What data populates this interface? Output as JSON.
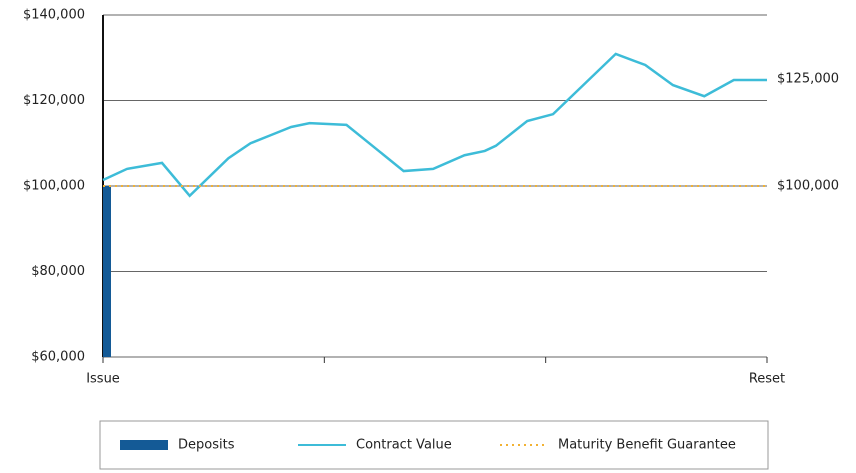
{
  "chart_data": {
    "type": "line",
    "xlim": [
      0,
      36
    ],
    "xticks": [
      {
        "value": 0,
        "label": "Issue"
      },
      {
        "value": 12,
        "label": null
      },
      {
        "value": 24,
        "label": null
      },
      {
        "value": 36,
        "label": "Reset"
      }
    ],
    "ylim": [
      60000,
      140000
    ],
    "yticks": [
      {
        "value": 60000,
        "label": "$60,000"
      },
      {
        "value": 80000,
        "label": "$80,000"
      },
      {
        "value": 100000,
        "label": "$100,000"
      },
      {
        "value": 120000,
        "label": "$120,000"
      },
      {
        "value": 140000,
        "label": "$140,000"
      }
    ],
    "grid": true,
    "series": [
      {
        "name": "Deposits",
        "type": "bar",
        "color": "#145a96",
        "x": [
          0
        ],
        "values": [
          100000
        ]
      },
      {
        "name": "Contract Value",
        "type": "line",
        "color": "#3dbcd8",
        "x": [
          0,
          1.3,
          3.2,
          4.7,
          6.8,
          8.0,
          9.1,
          10.2,
          11.2,
          13.2,
          16.3,
          17.9,
          19.6,
          20.7,
          21.3,
          23.0,
          24.4,
          27.8,
          29.4,
          30.9,
          32.6,
          34.2,
          36
        ],
        "values": [
          101400,
          104000,
          105400,
          97700,
          106500,
          110000,
          111900,
          113800,
          114700,
          114300,
          103500,
          104000,
          107200,
          108200,
          109400,
          115200,
          116800,
          130900,
          128300,
          123600,
          121000,
          124800,
          124800
        ]
      },
      {
        "name": "Maturity Benefit Guarantee",
        "type": "dotted",
        "color": "#f2b233",
        "x": [
          0,
          36
        ],
        "values": [
          100000,
          100000
        ]
      }
    ],
    "annotations": [
      {
        "value": 125000,
        "label": "$125,000"
      },
      {
        "value": 100000,
        "label": "$100,000"
      }
    ],
    "legend": "bottom"
  }
}
